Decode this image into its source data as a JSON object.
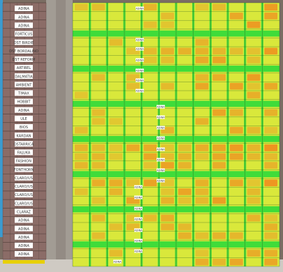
{
  "map": {
    "colors": {
      "soil": "#6f5f54",
      "road": "#b8b4ae",
      "plot_green": "#3fdc3a",
      "plot_yellow": "#d9e83b",
      "plot_orange": "#f08b1e",
      "label_bg": "#ffffff",
      "left_block": "#8b6c67"
    },
    "left_labels": [
      "ADINA",
      "ADINA",
      "ADINA",
      "FORTICUS",
      "DST BIRDIE",
      "DST BORDALINO",
      "DST REFORM",
      "ARTIBEL",
      "DALMATIA",
      "AMBIENT",
      "TIMAX",
      "HOBBIT",
      "ADINA",
      "ULE",
      "BIOS",
      "KARDAN",
      "OSTARRICA",
      "FALUKA",
      "FASHION",
      "FONTHORN",
      "CLARO/US",
      "CLARO/US",
      "CLARO/US",
      "CLARO/US",
      "CLARAZ",
      "ADINA",
      "ADINA",
      "ADINA",
      "ADINA",
      "ADINA"
    ],
    "plot_tag": "ADINA"
  }
}
